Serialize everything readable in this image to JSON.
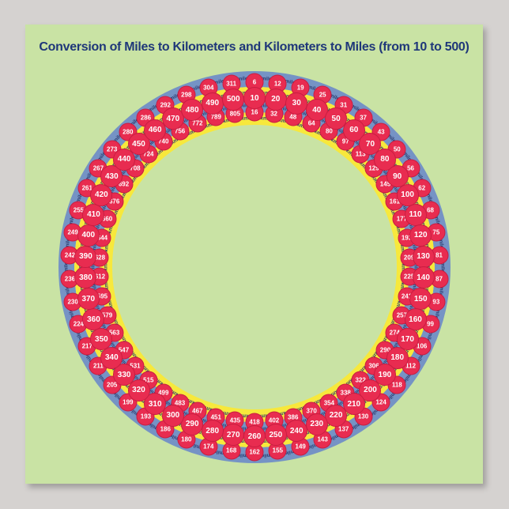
{
  "poster": {
    "title": "Conversion of Miles to Kilometers and Kilometers to Miles (from 10 to 500)"
  },
  "colors": {
    "page_bg": "#d5d2d0",
    "poster_bg": "#c9e3a4",
    "title": "#1f3779",
    "band_blue": "#7593c5",
    "band_yellow": "#f7e83c",
    "disc_red": "#e82c50",
    "disc_border": "#c81d41",
    "disc_text": "#ffffff",
    "unit_text": "#2c3a6e"
  },
  "chart_data": {
    "type": "table",
    "title": "Conversion of Miles to Kilometers and Kilometers to Miles (from 10 to 500)",
    "layout": "circular ring of 50 spokes, value 10 at top increasing clockwise by 7.2 degrees per step",
    "unit_labels": [
      "mile",
      "km",
      "mile",
      "km"
    ],
    "columns": [
      "km_converted_to_miles (outer)",
      "base_value (middle)",
      "miles_converted_to_km (inner)"
    ],
    "rows": [
      {
        "mi": 6,
        "n": 10,
        "km": 16
      },
      {
        "mi": 12,
        "n": 20,
        "km": 32
      },
      {
        "mi": 19,
        "n": 30,
        "km": 48
      },
      {
        "mi": 25,
        "n": 40,
        "km": 64
      },
      {
        "mi": 31,
        "n": 50,
        "km": 80
      },
      {
        "mi": 37,
        "n": 60,
        "km": 97
      },
      {
        "mi": 43,
        "n": 70,
        "km": 113
      },
      {
        "mi": 50,
        "n": 80,
        "km": 129
      },
      {
        "mi": 56,
        "n": 90,
        "km": 145
      },
      {
        "mi": 62,
        "n": 100,
        "km": 161
      },
      {
        "mi": 68,
        "n": 110,
        "km": 177
      },
      {
        "mi": 75,
        "n": 120,
        "km": 193
      },
      {
        "mi": 81,
        "n": 130,
        "km": 209
      },
      {
        "mi": 87,
        "n": 140,
        "km": 225
      },
      {
        "mi": 93,
        "n": 150,
        "km": 241
      },
      {
        "mi": 99,
        "n": 160,
        "km": 257
      },
      {
        "mi": 106,
        "n": 170,
        "km": 274
      },
      {
        "mi": 112,
        "n": 180,
        "km": 290
      },
      {
        "mi": 118,
        "n": 190,
        "km": 306
      },
      {
        "mi": 124,
        "n": 200,
        "km": 322
      },
      {
        "mi": 130,
        "n": 210,
        "km": 338
      },
      {
        "mi": 137,
        "n": 220,
        "km": 354
      },
      {
        "mi": 143,
        "n": 230,
        "km": 370
      },
      {
        "mi": 149,
        "n": 240,
        "km": 386
      },
      {
        "mi": 155,
        "n": 250,
        "km": 402
      },
      {
        "mi": 162,
        "n": 260,
        "km": 418
      },
      {
        "mi": 168,
        "n": 270,
        "km": 435
      },
      {
        "mi": 174,
        "n": 280,
        "km": 451
      },
      {
        "mi": 180,
        "n": 290,
        "km": 467
      },
      {
        "mi": 186,
        "n": 300,
        "km": 483
      },
      {
        "mi": 193,
        "n": 310,
        "km": 499
      },
      {
        "mi": 199,
        "n": 320,
        "km": 515
      },
      {
        "mi": 205,
        "n": 330,
        "km": 531
      },
      {
        "mi": 211,
        "n": 340,
        "km": 547
      },
      {
        "mi": 217,
        "n": 350,
        "km": 563
      },
      {
        "mi": 224,
        "n": 360,
        "km": 579
      },
      {
        "mi": 230,
        "n": 370,
        "km": 595
      },
      {
        "mi": 236,
        "n": 380,
        "km": 612
      },
      {
        "mi": 242,
        "n": 390,
        "km": 628
      },
      {
        "mi": 249,
        "n": 400,
        "km": 644
      },
      {
        "mi": 255,
        "n": 410,
        "km": 660
      },
      {
        "mi": 261,
        "n": 420,
        "km": 676
      },
      {
        "mi": 267,
        "n": 430,
        "km": 692
      },
      {
        "mi": 273,
        "n": 440,
        "km": 708
      },
      {
        "mi": 280,
        "n": 450,
        "km": 724
      },
      {
        "mi": 286,
        "n": 460,
        "km": 740
      },
      {
        "mi": 292,
        "n": 470,
        "km": 756
      },
      {
        "mi": 298,
        "n": 480,
        "km": 772
      },
      {
        "mi": 304,
        "n": 490,
        "km": 789
      },
      {
        "mi": 311,
        "n": 500,
        "km": 805
      }
    ]
  }
}
